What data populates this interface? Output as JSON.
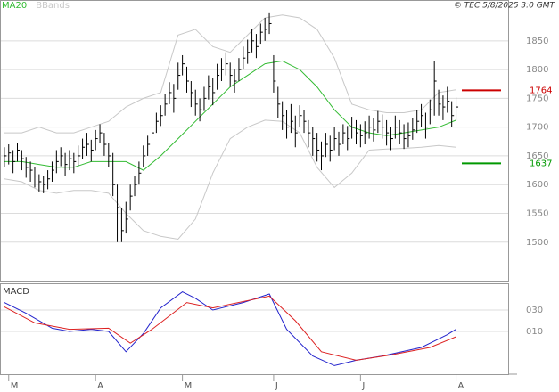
{
  "header": {
    "stamp": "© TEC 5/8/2025 3:0 GMT"
  },
  "chart_data": [
    {
      "type": "ohlc",
      "xlim": [
        -1,
        116
      ],
      "ylim": [
        1433,
        1921
      ],
      "yticks": [
        1500,
        1550,
        1600,
        1650,
        1700,
        1750,
        1800,
        1850
      ],
      "grid": true,
      "bars": {
        "color": "#000",
        "high": [
          1665,
          1670,
          1660,
          1672,
          1660,
          1648,
          1640,
          1630,
          1618,
          1615,
          1625,
          1640,
          1660,
          1665,
          1655,
          1660,
          1655,
          1668,
          1680,
          1690,
          1678,
          1695,
          1705,
          1690,
          1672,
          1655,
          1600,
          1560,
          1570,
          1600,
          1615,
          1640,
          1668,
          1685,
          1705,
          1725,
          1738,
          1758,
          1778,
          1775,
          1812,
          1825,
          1805,
          1780,
          1765,
          1750,
          1770,
          1790,
          1785,
          1810,
          1820,
          1830,
          1812,
          1800,
          1820,
          1840,
          1852,
          1870,
          1862,
          1880,
          1890,
          1898,
          1825,
          1770,
          1745,
          1730,
          1740,
          1720,
          1738,
          1730,
          1712,
          1700,
          1690,
          1675,
          1690,
          1685,
          1700,
          1692,
          1705,
          1702,
          1718,
          1712,
          1705,
          1710,
          1720,
          1715,
          1728,
          1722,
          1712,
          1700,
          1720,
          1712,
          1705,
          1708,
          1715,
          1730,
          1740,
          1725,
          1748,
          1815,
          1765,
          1755,
          1770,
          1745,
          1752
        ],
        "low": [
          1630,
          1635,
          1620,
          1640,
          1625,
          1612,
          1605,
          1595,
          1588,
          1585,
          1592,
          1605,
          1620,
          1632,
          1615,
          1625,
          1620,
          1632,
          1645,
          1650,
          1640,
          1660,
          1672,
          1650,
          1630,
          1580,
          1500,
          1500,
          1515,
          1555,
          1580,
          1600,
          1630,
          1650,
          1670,
          1690,
          1702,
          1720,
          1740,
          1725,
          1765,
          1790,
          1760,
          1735,
          1720,
          1710,
          1728,
          1748,
          1738,
          1765,
          1780,
          1790,
          1770,
          1760,
          1780,
          1800,
          1810,
          1830,
          1820,
          1845,
          1850,
          1862,
          1760,
          1715,
          1695,
          1680,
          1690,
          1665,
          1700,
          1690,
          1665,
          1650,
          1640,
          1625,
          1648,
          1640,
          1660,
          1650,
          1670,
          1660,
          1680,
          1670,
          1665,
          1670,
          1680,
          1675,
          1690,
          1680,
          1668,
          1660,
          1680,
          1670,
          1662,
          1665,
          1678,
          1690,
          1700,
          1680,
          1705,
          1720,
          1720,
          1712,
          1725,
          1700,
          1712
        ],
        "close": [
          1650,
          1655,
          1640,
          1660,
          1645,
          1630,
          1625,
          1615,
          1605,
          1600,
          1610,
          1625,
          1640,
          1650,
          1635,
          1645,
          1640,
          1650,
          1665,
          1670,
          1660,
          1680,
          1690,
          1670,
          1650,
          1600,
          1560,
          1520,
          1540,
          1580,
          1600,
          1620,
          1650,
          1670,
          1690,
          1710,
          1720,
          1740,
          1760,
          1750,
          1790,
          1810,
          1780,
          1760,
          1740,
          1730,
          1750,
          1770,
          1760,
          1790,
          1800,
          1810,
          1790,
          1780,
          1800,
          1820,
          1830,
          1850,
          1840,
          1865,
          1870,
          1880,
          1780,
          1740,
          1720,
          1700,
          1710,
          1690,
          1720,
          1710,
          1690,
          1680,
          1660,
          1650,
          1670,
          1660,
          1680,
          1670,
          1690,
          1680,
          1700,
          1690,
          1685,
          1690,
          1700,
          1695,
          1710,
          1700,
          1690,
          1680,
          1700,
          1690,
          1680,
          1685,
          1695,
          1710,
          1720,
          1700,
          1730,
          1780,
          1740,
          1735,
          1745,
          1720,
          1735
        ]
      },
      "series": [
        {
          "name": "MA20",
          "color": "#33bb33",
          "x": [
            0,
            4,
            8,
            12,
            16,
            20,
            24,
            28,
            32,
            36,
            40,
            44,
            48,
            52,
            56,
            60,
            64,
            68,
            72,
            76,
            80,
            84,
            88,
            92,
            96,
            100,
            104
          ],
          "values": [
            1640,
            1640,
            1635,
            1630,
            1630,
            1640,
            1640,
            1640,
            1625,
            1650,
            1680,
            1710,
            1740,
            1770,
            1790,
            1810,
            1815,
            1800,
            1770,
            1730,
            1700,
            1690,
            1685,
            1690,
            1695,
            1700,
            1712
          ]
        },
        {
          "name": "BBands",
          "color": "#c8c8c8",
          "x": [
            0,
            4,
            8,
            12,
            16,
            20,
            24,
            28,
            32,
            36,
            40,
            44,
            48,
            52,
            56,
            60,
            64,
            68,
            72,
            76,
            80,
            84,
            88,
            92,
            96,
            100,
            104
          ],
          "upper": [
            1690,
            1690,
            1700,
            1690,
            1690,
            1700,
            1710,
            1735,
            1750,
            1760,
            1860,
            1870,
            1840,
            1830,
            1860,
            1890,
            1895,
            1890,
            1870,
            1820,
            1740,
            1730,
            1725,
            1725,
            1730,
            1760,
            1765
          ],
          "lower": [
            1610,
            1605,
            1590,
            1585,
            1590,
            1590,
            1585,
            1550,
            1520,
            1510,
            1505,
            1540,
            1620,
            1680,
            1700,
            1712,
            1710,
            1690,
            1630,
            1595,
            1620,
            1660,
            1662,
            1663,
            1665,
            1668,
            1665
          ]
        }
      ],
      "price_lines": [
        {
          "value": 1764,
          "color": "#cc0000"
        },
        {
          "value": 1637,
          "color": "#009900"
        }
      ]
    },
    {
      "type": "line",
      "title": "MACD",
      "xlim": [
        -1,
        116
      ],
      "ylim": [
        -30,
        55
      ],
      "yticks": [
        {
          "value": 30,
          "label": "030"
        },
        {
          "value": 10,
          "label": "010"
        }
      ],
      "grid": true,
      "xticks": [
        {
          "value": 1,
          "label": "M"
        },
        {
          "value": 21,
          "label": "A"
        },
        {
          "value": 41,
          "label": "M"
        },
        {
          "value": 62,
          "label": "J"
        },
        {
          "value": 82,
          "label": "J"
        },
        {
          "value": 104,
          "label": "A"
        }
      ],
      "series": [
        {
          "color": "#2222cc",
          "x": [
            0,
            5,
            11,
            15,
            20,
            24,
            28,
            32,
            36,
            41,
            44,
            48,
            55,
            61,
            65,
            71,
            76,
            81,
            87,
            96,
            102,
            104
          ],
          "values": [
            37,
            27,
            13,
            10,
            12,
            10,
            -9,
            8,
            32,
            47,
            41,
            30,
            37,
            45,
            12,
            -13,
            -22,
            -17,
            -13,
            -5,
            7,
            12
          ]
        },
        {
          "color": "#dd2222",
          "x": [
            0,
            7,
            15,
            24,
            29,
            34,
            42,
            48,
            61,
            67,
            73,
            81,
            89,
            98,
            104
          ],
          "values": [
            33,
            18,
            12,
            13,
            -1,
            12,
            37,
            32,
            43,
            20,
            -9,
            -17,
            -12,
            -5,
            5
          ]
        }
      ]
    }
  ]
}
